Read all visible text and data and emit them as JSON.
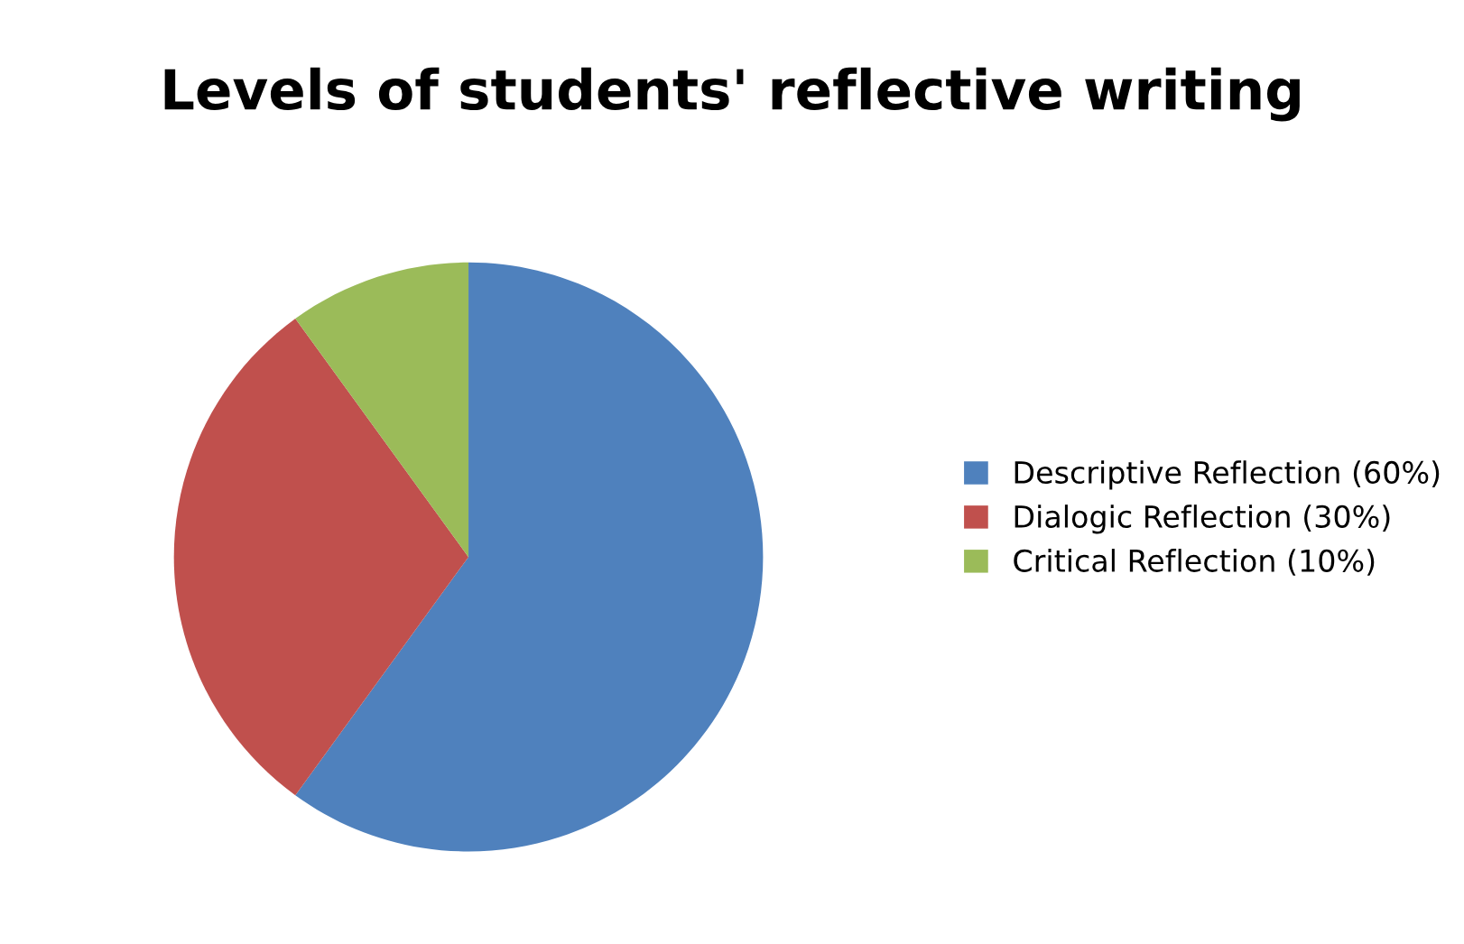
{
  "chart_data": {
    "type": "pie",
    "title": "Levels of students' reflective writing",
    "categories": [
      "Descriptive Reflection (60%)",
      "Dialogic Reflection (30%)",
      "Critical Reflection (10%)"
    ],
    "values": [
      60,
      30,
      10
    ],
    "colors": [
      "#4f81bd",
      "#c0504d",
      "#9bbb59"
    ],
    "legend": "right"
  }
}
